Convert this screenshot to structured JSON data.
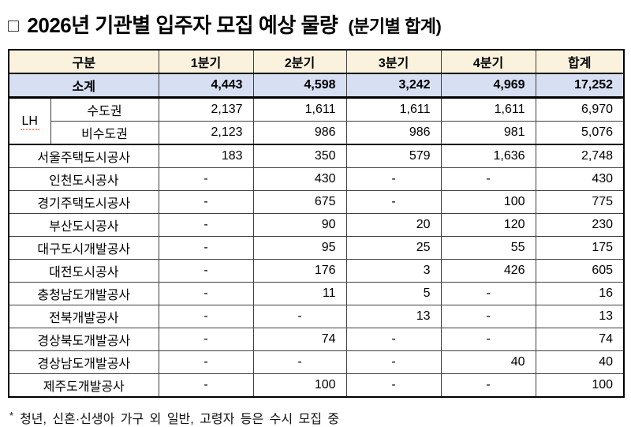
{
  "title": {
    "bullet": "□",
    "text": "2026년 기관별 입주자 모집 예상 물량",
    "suffix": "(분기별 합계)"
  },
  "table": {
    "headers": [
      "구분",
      "1분기",
      "2분기",
      "3분기",
      "4분기",
      "합계"
    ],
    "lh_group_label": "LH",
    "rows": [
      {
        "type": "subtotal",
        "label": "소계",
        "values": [
          "4,443",
          "4,598",
          "3,242",
          "4,969",
          "17,252"
        ]
      },
      {
        "type": "lh-first",
        "label": "수도권",
        "values": [
          "2,137",
          "1,611",
          "1,611",
          "1,611",
          "6,970"
        ]
      },
      {
        "type": "lh-second",
        "label": "비수도권",
        "values": [
          "2,123",
          "986",
          "986",
          "981",
          "5,076"
        ]
      },
      {
        "type": "agency",
        "label": "서울주택도시공사",
        "values": [
          "183",
          "350",
          "579",
          "1,636",
          "2,748"
        ]
      },
      {
        "type": "agency",
        "label": "인천도시공사",
        "values": [
          "-",
          "430",
          "-",
          "-",
          "430"
        ]
      },
      {
        "type": "agency",
        "label": "경기주택도시공사",
        "values": [
          "-",
          "675",
          "-",
          "100",
          "775"
        ]
      },
      {
        "type": "agency",
        "label": "부산도시공사",
        "values": [
          "-",
          "90",
          "20",
          "120",
          "230"
        ]
      },
      {
        "type": "agency",
        "label": "대구도시개발공사",
        "values": [
          "-",
          "95",
          "25",
          "55",
          "175"
        ]
      },
      {
        "type": "agency",
        "label": "대전도시공사",
        "values": [
          "-",
          "176",
          "3",
          "426",
          "605"
        ]
      },
      {
        "type": "agency",
        "label": "충청남도개발공사",
        "values": [
          "-",
          "11",
          "5",
          "-",
          "16"
        ]
      },
      {
        "type": "agency",
        "label": "전북개발공사",
        "values": [
          "-",
          "-",
          "13",
          "-",
          "13"
        ]
      },
      {
        "type": "agency",
        "label": "경상북도개발공사",
        "values": [
          "-",
          "74",
          "-",
          "-",
          "74"
        ]
      },
      {
        "type": "agency",
        "label": "경상남도개발공사",
        "values": [
          "-",
          "-",
          "-",
          "40",
          "40"
        ]
      },
      {
        "type": "agency",
        "label": "제주도개발공사",
        "values": [
          "-",
          "100",
          "-",
          "-",
          "100"
        ]
      }
    ]
  },
  "footnote": {
    "marker": "*",
    "text": "청년, 신혼·신생아 가구 외 일반, 고령자 등은 수시 모집 중"
  },
  "colors": {
    "header_bg": "#FBF2DE",
    "subtotal_bg": "#D7DFF2",
    "table_border": "#000000",
    "grid_line": "#404040",
    "spellcheck_underline": "#E8997A"
  }
}
